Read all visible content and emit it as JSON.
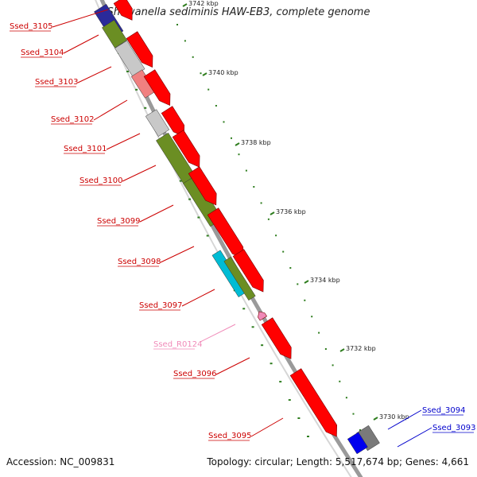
{
  "title": "Shewanella sediminis HAW-EB3, complete genome",
  "footer": {
    "accession": "Accession: NC_009831",
    "summary": "Topology: circular; Length: 5,517,674 bp; Genes: 4,661"
  },
  "colors": {
    "cds": "#ff0000",
    "rna": "#f08ab8",
    "cog_olive": "#6b8e23",
    "cog_grey": "#c8c8c8",
    "cog_pink": "#f08080",
    "cog_cyan": "#00bcd4",
    "cog_blue": "#0000ee",
    "label_red": "#cc0000",
    "label_pink": "#f08ab8",
    "label_blue": "#0000cc",
    "tick_green": "#2e7d1e"
  },
  "scale_labels": [
    "3742 kbp",
    "3740 kbp",
    "3738 kbp",
    "3736 kbp",
    "3734 kbp",
    "3732 kbp",
    "3730 kbp"
  ],
  "genes": [
    {
      "id": "g3105",
      "label": "Ssed_3105",
      "color": "label_red"
    },
    {
      "id": "g3104",
      "label": "Ssed_3104",
      "color": "label_red"
    },
    {
      "id": "g3103",
      "label": "Ssed_3103",
      "color": "label_red"
    },
    {
      "id": "g3102",
      "label": "Ssed_3102",
      "color": "label_red"
    },
    {
      "id": "g3101",
      "label": "Ssed_3101",
      "color": "label_red"
    },
    {
      "id": "g3100",
      "label": "Ssed_3100",
      "color": "label_red"
    },
    {
      "id": "g3099",
      "label": "Ssed_3099",
      "color": "label_red"
    },
    {
      "id": "g3098",
      "label": "Ssed_3098",
      "color": "label_red"
    },
    {
      "id": "g3097",
      "label": "Ssed_3097",
      "color": "label_red"
    },
    {
      "id": "gR0124",
      "label": "Ssed_R0124",
      "color": "label_pink"
    },
    {
      "id": "g3096",
      "label": "Ssed_3096",
      "color": "label_red"
    },
    {
      "id": "g3095",
      "label": "Ssed_3095",
      "color": "label_red"
    },
    {
      "id": "g3094",
      "label": "Ssed_3094",
      "color": "label_blue"
    },
    {
      "id": "g3093",
      "label": "Ssed_3093",
      "color": "label_blue"
    }
  ]
}
